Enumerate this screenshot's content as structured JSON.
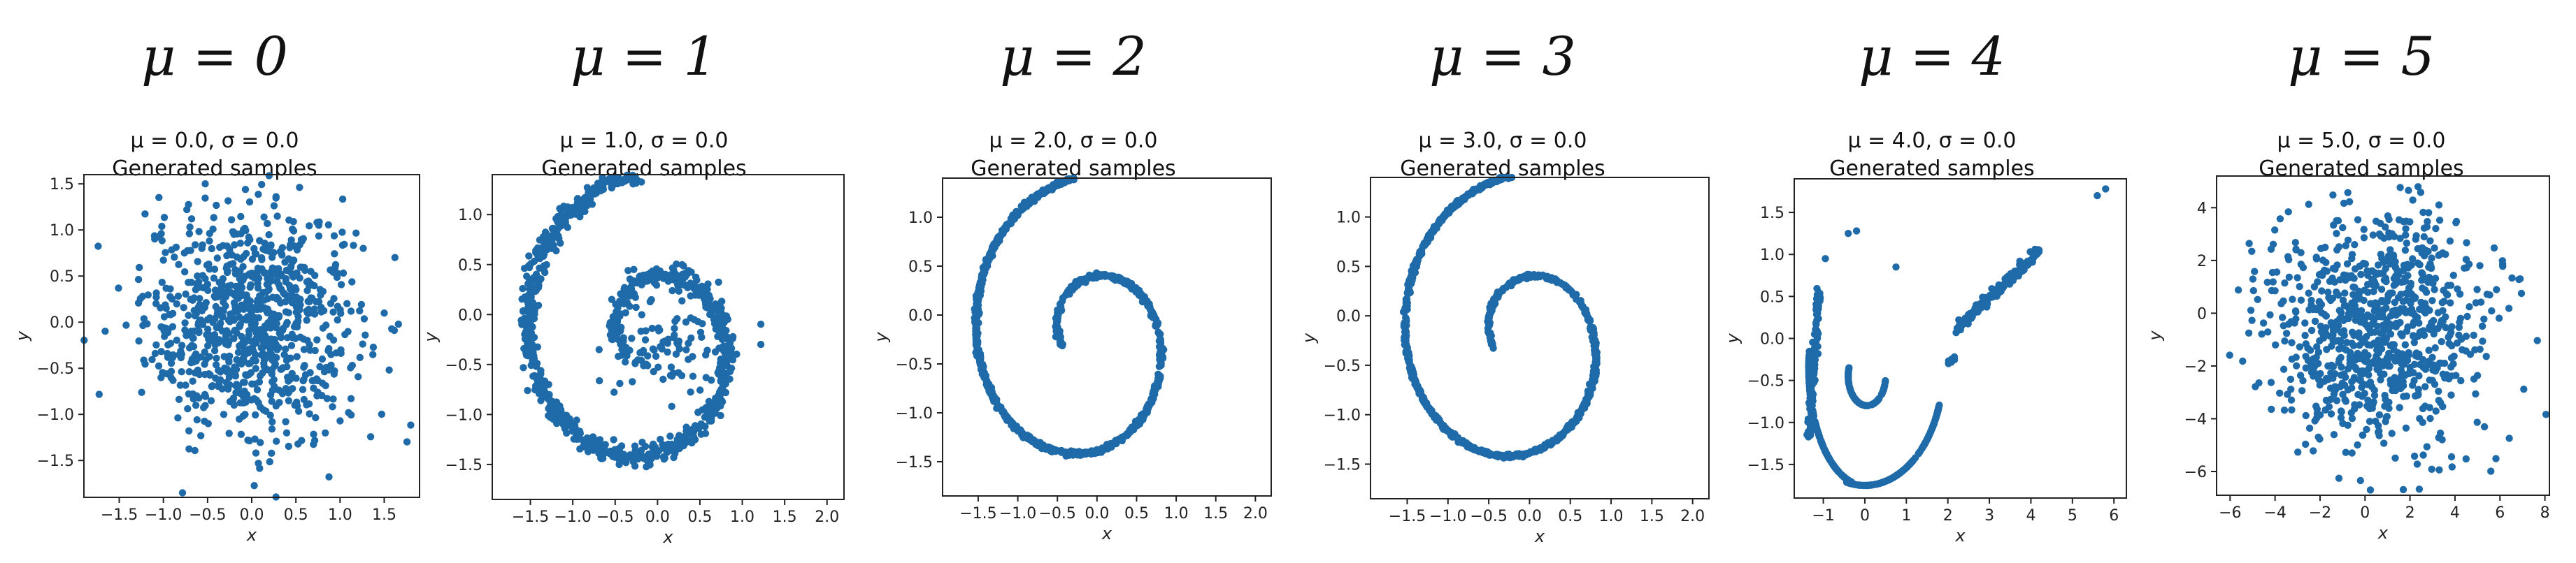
{
  "chart_data": [
    {
      "type": "scatter",
      "column_title": "μ = 0",
      "title_line1": "μ = 0.0, σ = 0.0",
      "title_line2": "Generated samples",
      "xlabel": "x",
      "ylabel": "y",
      "xlim": [
        -1.9,
        1.9
      ],
      "ylim": [
        -1.9,
        1.6
      ],
      "xticks": [
        -1.5,
        -1.0,
        -0.5,
        0.0,
        0.5,
        1.0,
        1.5
      ],
      "yticks": [
        -1.5,
        -1.0,
        -0.5,
        0.0,
        0.5,
        1.0,
        1.5
      ],
      "color": "#1f6aa8",
      "pattern": "gaussian_blob",
      "pattern_params": {
        "cx": 0.0,
        "cy": 0.0,
        "sx": 0.6,
        "sy": 0.62,
        "n": 900
      }
    },
    {
      "type": "scatter",
      "column_title": "μ = 1",
      "title_line1": "μ = 1.0, σ = 0.0",
      "title_line2": "Generated samples",
      "xlabel": "x",
      "ylabel": "y",
      "xlim": [
        -1.95,
        2.2
      ],
      "ylim": [
        -1.85,
        1.4
      ],
      "xticks": [
        -1.5,
        -1.0,
        -0.5,
        0.0,
        0.5,
        1.0,
        1.5,
        2.0
      ],
      "yticks": [
        -1.5,
        -1.0,
        -0.5,
        0.0,
        0.5,
        1.0
      ],
      "color": "#1f6aa8",
      "pattern": "spiral",
      "pattern_params": {
        "noise": 0.05,
        "n": 900,
        "inner_cluster": true
      }
    },
    {
      "type": "scatter",
      "column_title": "μ = 2",
      "title_line1": "μ = 2.0, σ = 0.0",
      "title_line2": "Generated samples",
      "xlabel": "x",
      "ylabel": "y",
      "xlim": [
        -1.95,
        2.2
      ],
      "ylim": [
        -1.85,
        1.4
      ],
      "xticks": [
        -1.5,
        -1.0,
        -0.5,
        0.0,
        0.5,
        1.0,
        1.5,
        2.0
      ],
      "yticks": [
        -1.5,
        -1.0,
        -0.5,
        0.0,
        0.5,
        1.0
      ],
      "color": "#1f6aa8",
      "pattern": "spiral",
      "pattern_params": {
        "noise": 0.012,
        "n": 1000,
        "inner_cluster": false
      }
    },
    {
      "type": "scatter",
      "column_title": "μ = 3",
      "title_line1": "μ = 3.0, σ = 0.0",
      "title_line2": "Generated samples",
      "xlabel": "x",
      "ylabel": "y",
      "xlim": [
        -1.95,
        2.2
      ],
      "ylim": [
        -1.85,
        1.4
      ],
      "xticks": [
        -1.5,
        -1.0,
        -0.5,
        0.0,
        0.5,
        1.0,
        1.5,
        2.0
      ],
      "yticks": [
        -1.5,
        -1.0,
        -0.5,
        0.0,
        0.5,
        1.0
      ],
      "color": "#1f6aa8",
      "pattern": "spiral",
      "pattern_params": {
        "noise": 0.01,
        "n": 1000,
        "inner_cluster": false,
        "inner_loop": true
      }
    },
    {
      "type": "scatter",
      "column_title": "μ = 4",
      "title_line1": "μ = 4.0, σ = 0.0",
      "title_line2": "Generated samples",
      "xlabel": "x",
      "ylabel": "y",
      "xlim": [
        -1.7,
        6.3
      ],
      "ylim": [
        -1.9,
        1.9
      ],
      "xticks": [
        -1,
        0,
        1,
        2,
        3,
        4,
        5,
        6
      ],
      "yticks": [
        -1.5,
        -1.0,
        -0.5,
        0.0,
        0.5,
        1.0,
        1.5
      ],
      "color": "#1f6aa8",
      "pattern": "distorted",
      "pattern_params": {
        "n": 700
      }
    },
    {
      "type": "scatter",
      "column_title": "μ = 5",
      "title_line1": "μ = 5.0, σ = 0.0",
      "title_line2": "Generated samples",
      "xlabel": "x",
      "ylabel": "y",
      "xlim": [
        -6.6,
        8.2
      ],
      "ylim": [
        -6.9,
        5.2
      ],
      "xticks": [
        -6,
        -4,
        -2,
        0,
        2,
        4,
        6,
        8
      ],
      "yticks": [
        -6,
        -4,
        -2,
        0,
        2,
        4
      ],
      "color": "#1f6aa8",
      "pattern": "gaussian_blob",
      "pattern_params": {
        "cx": 0.4,
        "cy": -0.4,
        "sx": 2.4,
        "sy": 2.3,
        "n": 900
      }
    }
  ]
}
